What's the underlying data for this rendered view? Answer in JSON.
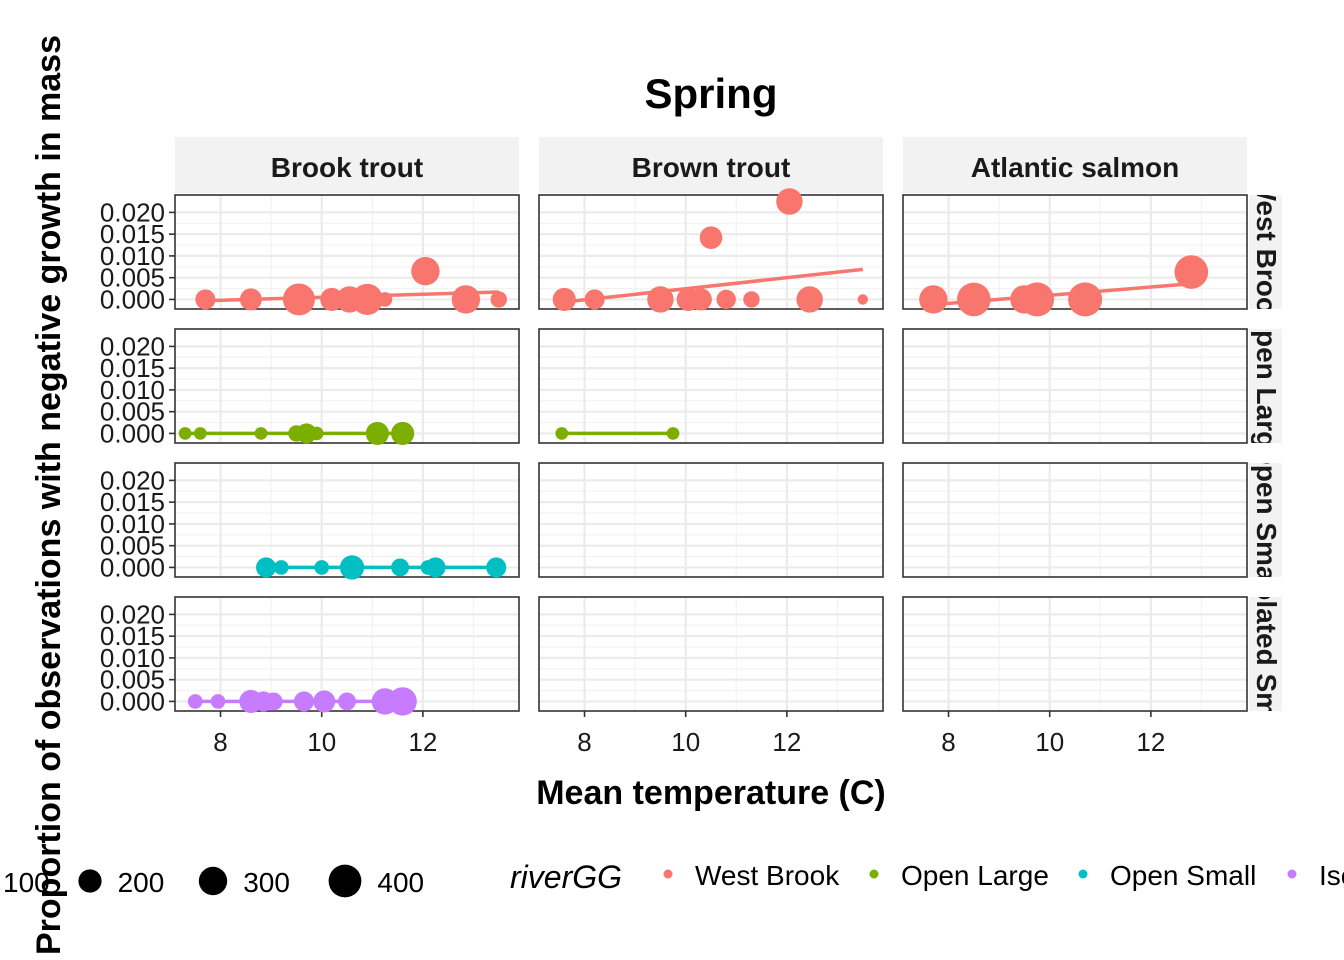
{
  "chart_data": {
    "type": "scatter",
    "title": "Spring",
    "xlabel": "Mean temperature (C)",
    "ylabel": "Proportion of observations with negative growth in mass",
    "xlim": [
      7.1,
      13.9
    ],
    "ylim": [
      -0.0022,
      0.024
    ],
    "x_ticks": [
      8,
      10,
      12
    ],
    "y_ticks": [
      0.0,
      0.005,
      0.01,
      0.015,
      0.02
    ],
    "y_tick_labels": [
      "0.000",
      "0.005",
      "0.010",
      "0.015",
      "0.020"
    ],
    "facet_cols": [
      "Brook trout",
      "Brown trout",
      "Atlantic salmon"
    ],
    "facet_rows": [
      "West Brook",
      "Open Large",
      "Open Small",
      "Isolated Small"
    ],
    "color_legend_title": "riverGG",
    "size_legend_values": [
      100,
      200,
      300,
      400
    ],
    "series_colors": {
      "West Brook": "#F8766D",
      "Open Large": "#7CAE00",
      "Open Small": "#00BFC4",
      "Isolated Small": "#C77CFF"
    },
    "panels": [
      {
        "row": "West Brook",
        "col": "Brook trout",
        "points": [
          {
            "x": 7.7,
            "y": 0.0,
            "n": 150
          },
          {
            "x": 8.6,
            "y": 0.0,
            "n": 180
          },
          {
            "x": 9.55,
            "y": 0.0,
            "n": 380
          },
          {
            "x": 10.2,
            "y": 0.0,
            "n": 200
          },
          {
            "x": 10.55,
            "y": 0.0,
            "n": 260
          },
          {
            "x": 10.9,
            "y": 0.0,
            "n": 360
          },
          {
            "x": 11.25,
            "y": 0.0,
            "n": 80
          },
          {
            "x": 12.05,
            "y": 0.0065,
            "n": 300
          },
          {
            "x": 12.85,
            "y": 0.0,
            "n": 300
          },
          {
            "x": 13.5,
            "y": 0.0,
            "n": 100
          }
        ],
        "fit": [
          [
            7.7,
            -0.0003
          ],
          [
            13.5,
            0.0017
          ]
        ]
      },
      {
        "row": "West Brook",
        "col": "Brown trout",
        "points": [
          {
            "x": 7.6,
            "y": 0.0,
            "n": 200
          },
          {
            "x": 8.2,
            "y": 0.0,
            "n": 150
          },
          {
            "x": 9.5,
            "y": 0.0,
            "n": 260
          },
          {
            "x": 10.05,
            "y": 0.0,
            "n": 200
          },
          {
            "x": 10.3,
            "y": 0.0,
            "n": 180
          },
          {
            "x": 10.5,
            "y": 0.0142,
            "n": 190
          },
          {
            "x": 10.8,
            "y": 0.0,
            "n": 140
          },
          {
            "x": 11.3,
            "y": 0.0,
            "n": 100
          },
          {
            "x": 12.05,
            "y": 0.0225,
            "n": 260
          },
          {
            "x": 12.45,
            "y": 0.0,
            "n": 260
          },
          {
            "x": 13.5,
            "y": 0.0,
            "n": 40
          }
        ],
        "fit": [
          [
            7.6,
            -0.0006
          ],
          [
            13.5,
            0.0069
          ]
        ]
      },
      {
        "row": "West Brook",
        "col": "Atlantic salmon",
        "points": [
          {
            "x": 7.7,
            "y": 0.0,
            "n": 300
          },
          {
            "x": 8.5,
            "y": 0.0,
            "n": 420
          },
          {
            "x": 9.5,
            "y": 0.0,
            "n": 300
          },
          {
            "x": 9.75,
            "y": 0.0,
            "n": 430
          },
          {
            "x": 10.7,
            "y": 0.0,
            "n": 430
          },
          {
            "x": 12.8,
            "y": 0.0063,
            "n": 420
          }
        ],
        "fit": [
          [
            7.7,
            -0.0012
          ],
          [
            12.8,
            0.0036
          ]
        ]
      },
      {
        "row": "Open Large",
        "col": "Brook trout",
        "points": [
          {
            "x": 7.3,
            "y": 0.0,
            "n": 60
          },
          {
            "x": 7.6,
            "y": 0.0,
            "n": 60
          },
          {
            "x": 8.8,
            "y": 0.0,
            "n": 60
          },
          {
            "x": 9.5,
            "y": 0.0,
            "n": 100
          },
          {
            "x": 9.7,
            "y": 0.0,
            "n": 150
          },
          {
            "x": 9.9,
            "y": 0.0,
            "n": 70
          },
          {
            "x": 11.1,
            "y": 0.0,
            "n": 200
          },
          {
            "x": 11.6,
            "y": 0.0,
            "n": 200
          }
        ],
        "fit": [
          [
            7.3,
            0.0
          ],
          [
            11.6,
            0.0
          ]
        ]
      },
      {
        "row": "Open Large",
        "col": "Brown trout",
        "points": [
          {
            "x": 7.55,
            "y": 0.0,
            "n": 60
          },
          {
            "x": 9.75,
            "y": 0.0,
            "n": 60
          }
        ],
        "fit": [
          [
            7.55,
            0.0
          ],
          [
            9.75,
            0.0
          ]
        ]
      },
      {
        "row": "Open Large",
        "col": "Atlantic salmon",
        "points": [],
        "fit": []
      },
      {
        "row": "Open Small",
        "col": "Brook trout",
        "points": [
          {
            "x": 8.9,
            "y": 0.0,
            "n": 150
          },
          {
            "x": 9.2,
            "y": 0.0,
            "n": 80
          },
          {
            "x": 10.0,
            "y": 0.0,
            "n": 80
          },
          {
            "x": 10.6,
            "y": 0.0,
            "n": 220
          },
          {
            "x": 11.55,
            "y": 0.0,
            "n": 120
          },
          {
            "x": 12.1,
            "y": 0.0,
            "n": 80
          },
          {
            "x": 12.25,
            "y": 0.0,
            "n": 150
          },
          {
            "x": 13.45,
            "y": 0.0,
            "n": 150
          }
        ],
        "fit": [
          [
            8.9,
            0.0
          ],
          [
            13.45,
            0.0
          ]
        ]
      },
      {
        "row": "Open Small",
        "col": "Brown trout",
        "points": [],
        "fit": []
      },
      {
        "row": "Open Small",
        "col": "Atlantic salmon",
        "points": [],
        "fit": []
      },
      {
        "row": "Isolated Small",
        "col": "Brook trout",
        "points": [
          {
            "x": 7.5,
            "y": 0.0,
            "n": 80
          },
          {
            "x": 7.95,
            "y": 0.0,
            "n": 80
          },
          {
            "x": 8.6,
            "y": 0.0,
            "n": 200
          },
          {
            "x": 8.85,
            "y": 0.0,
            "n": 150
          },
          {
            "x": 9.05,
            "y": 0.0,
            "n": 120
          },
          {
            "x": 9.65,
            "y": 0.0,
            "n": 150
          },
          {
            "x": 10.05,
            "y": 0.0,
            "n": 180
          },
          {
            "x": 10.5,
            "y": 0.0,
            "n": 120
          },
          {
            "x": 11.25,
            "y": 0.0,
            "n": 260
          },
          {
            "x": 11.6,
            "y": 0.0,
            "n": 300
          }
        ],
        "fit": [
          [
            7.5,
            0.0
          ],
          [
            11.6,
            0.0
          ]
        ]
      },
      {
        "row": "Isolated Small",
        "col": "Brown trout",
        "points": [],
        "fit": []
      },
      {
        "row": "Isolated Small",
        "col": "Atlantic salmon",
        "points": [],
        "fit": []
      }
    ]
  }
}
